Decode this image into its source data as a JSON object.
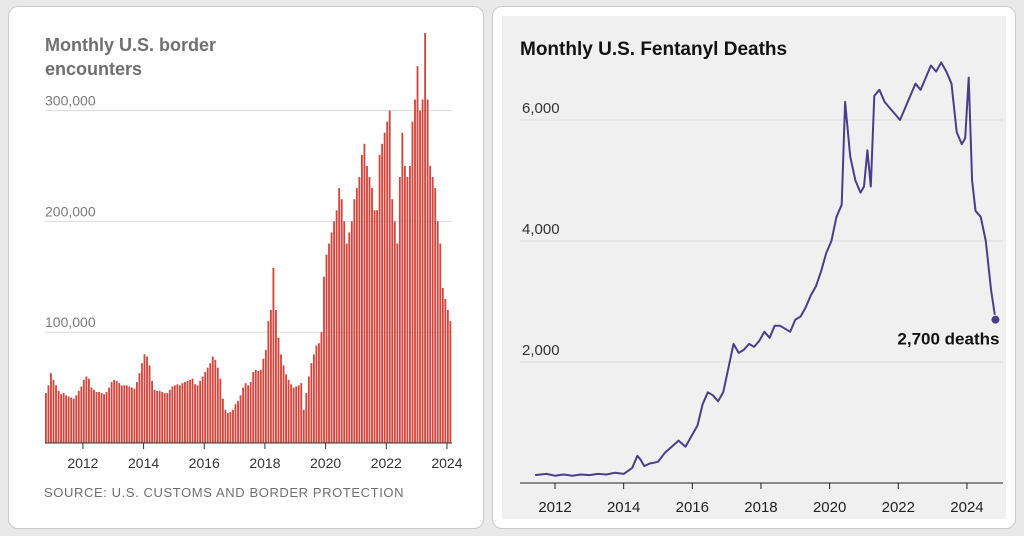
{
  "left": {
    "title": "Monthly U.S. border encounters",
    "source": "SOURCE: U.S. CUSTOMS AND BORDER PROTECTION"
  },
  "right": {
    "title": "Monthly U.S. Fentanyl Deaths",
    "annotation": "2,700 deaths"
  },
  "colors": {
    "bars": "#d5443b",
    "line": "#4a3f87",
    "grid": "#dcdcdc"
  },
  "chart_data": [
    {
      "type": "bar",
      "title": "Monthly U.S. border encounters",
      "x_start": "2010-10",
      "x_end": "2024-10",
      "x_ticks": [
        "2012",
        "2014",
        "2016",
        "2018",
        "2020",
        "2022",
        "2024"
      ],
      "y_ticks": [
        "100,000",
        "200,000",
        "300,000"
      ],
      "ylim": [
        0,
        370000
      ],
      "grid": true,
      "values": [
        45000,
        52000,
        63000,
        57000,
        52000,
        47000,
        44000,
        45000,
        43000,
        42000,
        41000,
        40000,
        43000,
        47000,
        51000,
        57000,
        60000,
        58000,
        50000,
        48000,
        46000,
        46000,
        45000,
        44000,
        46000,
        50000,
        55000,
        57000,
        56000,
        54000,
        52000,
        52000,
        52000,
        51000,
        50000,
        49000,
        55000,
        63000,
        72000,
        80000,
        78000,
        70000,
        56000,
        48000,
        47000,
        47000,
        46000,
        45000,
        45000,
        48000,
        51000,
        52000,
        53000,
        52000,
        54000,
        55000,
        56000,
        57000,
        58000,
        53000,
        52000,
        56000,
        60000,
        64000,
        68000,
        72000,
        78000,
        75000,
        68000,
        58000,
        40000,
        30000,
        27000,
        28000,
        30000,
        35000,
        38000,
        43000,
        50000,
        54000,
        52000,
        55000,
        64000,
        66000,
        65000,
        66000,
        76000,
        84000,
        110000,
        120000,
        158000,
        120000,
        95000,
        80000,
        70000,
        62000,
        57000,
        53000,
        50000,
        51000,
        52000,
        54000,
        30000,
        45000,
        60000,
        72000,
        80000,
        88000,
        90000,
        100000,
        150000,
        170000,
        180000,
        190000,
        200000,
        210000,
        230000,
        220000,
        200000,
        180000,
        190000,
        200000,
        220000,
        230000,
        240000,
        260000,
        270000,
        250000,
        240000,
        230000,
        210000,
        210000,
        260000,
        270000,
        280000,
        290000,
        300000,
        220000,
        200000,
        180000,
        240000,
        280000,
        250000,
        240000,
        250000,
        290000,
        310000,
        340000,
        300000,
        310000,
        370000,
        310000,
        250000,
        240000,
        230000,
        200000,
        180000,
        140000,
        130000,
        120000,
        110000
      ],
      "xlabel": "",
      "ylabel": ""
    },
    {
      "type": "line",
      "title": "Monthly U.S. Fentanyl Deaths",
      "x_ticks": [
        "2012",
        "2014",
        "2016",
        "2018",
        "2020",
        "2022",
        "2024"
      ],
      "y_ticks": [
        "2,000",
        "4,000",
        "6,000"
      ],
      "xlim": [
        2010.5,
        2025.2
      ],
      "ylim": [
        0,
        6800
      ],
      "grid": true,
      "points": [
        [
          2011.42,
          130
        ],
        [
          2011.75,
          150
        ],
        [
          2012.0,
          120
        ],
        [
          2012.25,
          140
        ],
        [
          2012.5,
          120
        ],
        [
          2012.75,
          140
        ],
        [
          2013.0,
          130
        ],
        [
          2013.25,
          150
        ],
        [
          2013.5,
          140
        ],
        [
          2013.75,
          170
        ],
        [
          2014.0,
          150
        ],
        [
          2014.25,
          250
        ],
        [
          2014.4,
          450
        ],
        [
          2014.5,
          380
        ],
        [
          2014.6,
          280
        ],
        [
          2014.75,
          320
        ],
        [
          2015.0,
          350
        ],
        [
          2015.2,
          500
        ],
        [
          2015.4,
          600
        ],
        [
          2015.6,
          700
        ],
        [
          2015.8,
          600
        ],
        [
          2016.0,
          800
        ],
        [
          2016.15,
          950
        ],
        [
          2016.3,
          1300
        ],
        [
          2016.45,
          1500
        ],
        [
          2016.6,
          1450
        ],
        [
          2016.75,
          1350
        ],
        [
          2016.9,
          1500
        ],
        [
          2017.05,
          1900
        ],
        [
          2017.2,
          2300
        ],
        [
          2017.35,
          2150
        ],
        [
          2017.5,
          2200
        ],
        [
          2017.65,
          2300
        ],
        [
          2017.8,
          2250
        ],
        [
          2017.95,
          2350
        ],
        [
          2018.1,
          2500
        ],
        [
          2018.25,
          2400
        ],
        [
          2018.4,
          2600
        ],
        [
          2018.55,
          2600
        ],
        [
          2018.7,
          2550
        ],
        [
          2018.85,
          2500
        ],
        [
          2019.0,
          2700
        ],
        [
          2019.15,
          2750
        ],
        [
          2019.3,
          2900
        ],
        [
          2019.45,
          3100
        ],
        [
          2019.6,
          3250
        ],
        [
          2019.75,
          3500
        ],
        [
          2019.9,
          3800
        ],
        [
          2020.05,
          4000
        ],
        [
          2020.2,
          4400
        ],
        [
          2020.35,
          4600
        ],
        [
          2020.45,
          6300
        ],
        [
          2020.6,
          5400
        ],
        [
          2020.75,
          5000
        ],
        [
          2020.9,
          4800
        ],
        [
          2021.0,
          4900
        ],
        [
          2021.1,
          5500
        ],
        [
          2021.2,
          4900
        ],
        [
          2021.3,
          6400
        ],
        [
          2021.45,
          6500
        ],
        [
          2021.6,
          6300
        ],
        [
          2021.75,
          6200
        ],
        [
          2021.9,
          6100
        ],
        [
          2022.05,
          6000
        ],
        [
          2022.2,
          6200
        ],
        [
          2022.35,
          6400
        ],
        [
          2022.5,
          6600
        ],
        [
          2022.65,
          6500
        ],
        [
          2022.8,
          6700
        ],
        [
          2022.95,
          6900
        ],
        [
          2023.1,
          6800
        ],
        [
          2023.25,
          6950
        ],
        [
          2023.4,
          6800
        ],
        [
          2023.55,
          6600
        ],
        [
          2023.7,
          5800
        ],
        [
          2023.85,
          5600
        ],
        [
          2023.95,
          5700
        ],
        [
          2024.05,
          6700
        ],
        [
          2024.15,
          5000
        ],
        [
          2024.25,
          4500
        ],
        [
          2024.4,
          4400
        ],
        [
          2024.55,
          4000
        ],
        [
          2024.7,
          3200
        ],
        [
          2024.83,
          2700
        ]
      ],
      "annotation_point": [
        2024.83,
        2700
      ],
      "xlabel": "",
      "ylabel": ""
    }
  ]
}
